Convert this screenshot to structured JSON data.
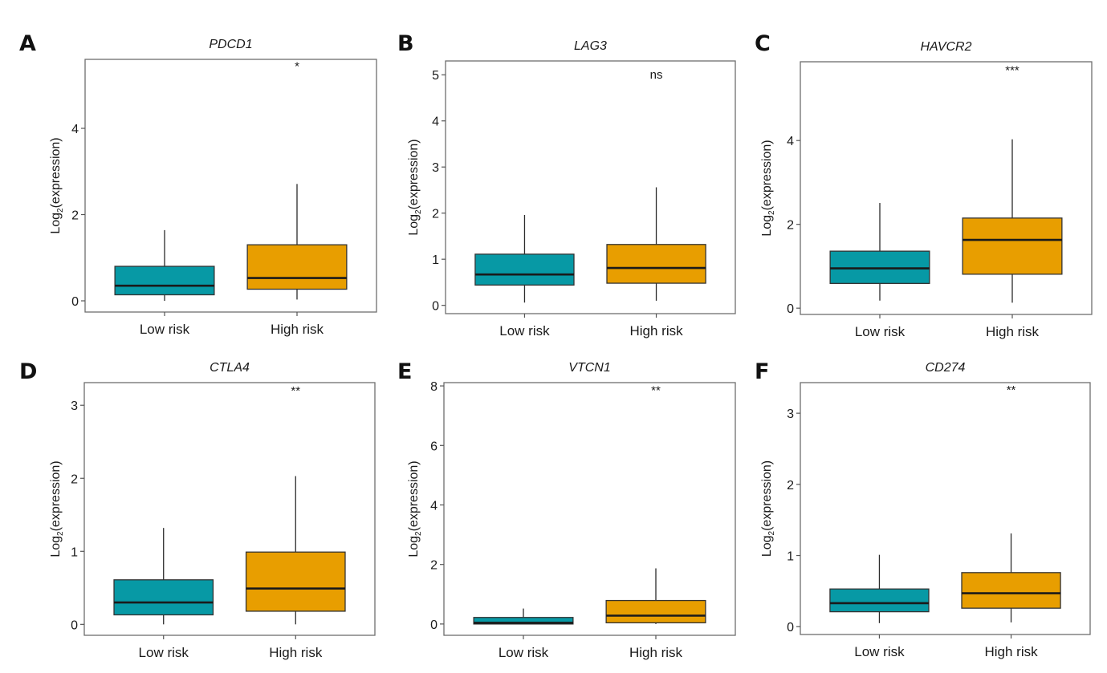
{
  "figure": {
    "ylabel": "Log2(expression)",
    "ylabel_main": "Log",
    "ylabel_sub": "2",
    "ylabel_tail": "(expression)"
  },
  "chart_data": [
    {
      "panel": "A",
      "type": "box",
      "title": "PDCD1",
      "xlabel": "",
      "ylabel": "Log2(expression)",
      "categories": [
        "Low risk",
        "High risk"
      ],
      "colors": [
        "#0799A5",
        "#E89E00"
      ],
      "ylim": [
        -0.26,
        5.6
      ],
      "yticks": [
        0,
        2,
        4
      ],
      "significance": "*",
      "significance_y": 5.44,
      "boxes": [
        {
          "group": "Low risk",
          "whisker_low": 0.0,
          "q1": 0.14,
          "median": 0.35,
          "q3": 0.8,
          "whisker_high": 1.64
        },
        {
          "group": "High risk",
          "whisker_low": 0.03,
          "q1": 0.27,
          "median": 0.53,
          "q3": 1.3,
          "whisker_high": 2.71
        }
      ]
    },
    {
      "panel": "B",
      "type": "box",
      "title": "LAG3",
      "xlabel": "",
      "ylabel": "Log2(expression)",
      "categories": [
        "Low risk",
        "High risk"
      ],
      "colors": [
        "#0799A5",
        "#E89E00"
      ],
      "ylim": [
        -0.18,
        5.3
      ],
      "yticks": [
        0,
        1,
        2,
        3,
        4,
        5
      ],
      "significance": "ns",
      "significance_y": 5.0,
      "boxes": [
        {
          "group": "Low risk",
          "whisker_low": 0.06,
          "q1": 0.44,
          "median": 0.67,
          "q3": 1.11,
          "whisker_high": 1.96
        },
        {
          "group": "High risk",
          "whisker_low": 0.1,
          "q1": 0.48,
          "median": 0.81,
          "q3": 1.32,
          "whisker_high": 2.56
        }
      ]
    },
    {
      "panel": "C",
      "type": "box",
      "title": "HAVCR2",
      "xlabel": "",
      "ylabel": "Log2(expression)",
      "categories": [
        "Low risk",
        "High risk"
      ],
      "colors": [
        "#0799A5",
        "#E89E00"
      ],
      "ylim": [
        -0.15,
        5.88
      ],
      "yticks": [
        0,
        2,
        4
      ],
      "significance": "***",
      "significance_y": 5.68,
      "boxes": [
        {
          "group": "Low risk",
          "whisker_low": 0.18,
          "q1": 0.59,
          "median": 0.95,
          "q3": 1.36,
          "whisker_high": 2.51
        },
        {
          "group": "High risk",
          "whisker_low": 0.13,
          "q1": 0.81,
          "median": 1.63,
          "q3": 2.15,
          "whisker_high": 4.03
        }
      ]
    },
    {
      "panel": "D",
      "type": "box",
      "title": "CTLA4",
      "xlabel": "",
      "ylabel": "Log2(expression)",
      "categories": [
        "Low risk",
        "High risk"
      ],
      "colors": [
        "#0799A5",
        "#E89E00"
      ],
      "ylim": [
        -0.15,
        3.31
      ],
      "yticks": [
        0,
        1,
        2,
        3
      ],
      "significance": "**",
      "significance_y": 3.2,
      "boxes": [
        {
          "group": "Low risk",
          "whisker_low": 0.0,
          "q1": 0.13,
          "median": 0.3,
          "q3": 0.61,
          "whisker_high": 1.32
        },
        {
          "group": "High risk",
          "whisker_low": 0.0,
          "q1": 0.18,
          "median": 0.49,
          "q3": 0.99,
          "whisker_high": 2.03
        }
      ]
    },
    {
      "panel": "E",
      "type": "box",
      "title": "VTCN1",
      "xlabel": "",
      "ylabel": "Log2(expression)",
      "categories": [
        "Low risk",
        "High risk"
      ],
      "colors": [
        "#0799A5",
        "#E89E00"
      ],
      "ylim": [
        -0.38,
        8.11
      ],
      "yticks": [
        0,
        2,
        4,
        6,
        8
      ],
      "significance": "**",
      "significance_y": 7.85,
      "boxes": [
        {
          "group": "Low risk",
          "whisker_low": 0.0,
          "q1": 0.0,
          "median": 0.04,
          "q3": 0.22,
          "whisker_high": 0.52
        },
        {
          "group": "High risk",
          "whisker_low": 0.0,
          "q1": 0.04,
          "median": 0.28,
          "q3": 0.79,
          "whisker_high": 1.87
        }
      ]
    },
    {
      "panel": "F",
      "type": "box",
      "title": "CD274",
      "xlabel": "",
      "ylabel": "Log2(expression)",
      "categories": [
        "Low risk",
        "High risk"
      ],
      "colors": [
        "#0799A5",
        "#E89E00"
      ],
      "ylim": [
        -0.11,
        3.43
      ],
      "yticks": [
        0,
        1,
        2,
        3
      ],
      "significance": "**",
      "significance_y": 3.33,
      "boxes": [
        {
          "group": "Low risk",
          "whisker_low": 0.05,
          "q1": 0.21,
          "median": 0.33,
          "q3": 0.53,
          "whisker_high": 1.01
        },
        {
          "group": "High risk",
          "whisker_low": 0.06,
          "q1": 0.26,
          "median": 0.47,
          "q3": 0.76,
          "whisker_high": 1.31
        }
      ]
    }
  ]
}
